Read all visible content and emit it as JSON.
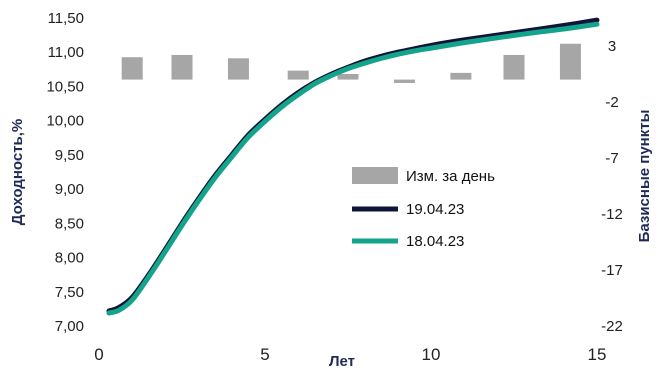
{
  "chart_data": {
    "type": "line",
    "title": "",
    "xlabel": "Лет",
    "ylabel_left": "Доходность,%",
    "ylabel_right": "Базисные пункты",
    "x_range": [
      0,
      15
    ],
    "x_ticks": [
      "0",
      "5",
      "10",
      "15"
    ],
    "y_left_range": [
      7.0,
      11.5
    ],
    "y_left_ticks": [
      "7,00",
      "7,50",
      "8,00",
      "8,50",
      "9,00",
      "9,50",
      "10,00",
      "10,50",
      "11,00",
      "11,50"
    ],
    "y_right_range": [
      -22,
      5.5
    ],
    "y_right_ticks": [
      "3",
      "-2",
      "-7",
      "-12",
      "-17",
      "-22"
    ],
    "grid": false,
    "legend_position": "center-right",
    "colors": {
      "bars": "#a6a6a6",
      "line_1": "#0f1538",
      "line_2": "#14a38b"
    },
    "series": [
      {
        "name": "Изм. за день",
        "type": "bar",
        "axis": "right",
        "x": [
          1,
          2.5,
          4.2,
          6,
          7.5,
          9.2,
          10.9,
          12.5,
          14.2
        ],
        "values": [
          2.0,
          2.2,
          1.9,
          0.8,
          0.5,
          -0.3,
          0.6,
          2.2,
          3.2
        ]
      },
      {
        "name": "19.04.23",
        "type": "line",
        "axis": "left",
        "x": [
          0.3,
          0.6,
          1,
          1.5,
          2,
          2.5,
          3,
          3.5,
          4,
          4.5,
          5,
          5.5,
          6,
          6.5,
          7,
          7.5,
          8,
          8.5,
          9,
          9.5,
          10,
          11,
          12,
          13,
          14,
          15
        ],
        "values": [
          7.22,
          7.27,
          7.42,
          7.75,
          8.12,
          8.5,
          8.86,
          9.2,
          9.5,
          9.79,
          10.02,
          10.23,
          10.41,
          10.56,
          10.68,
          10.78,
          10.87,
          10.94,
          11.0,
          11.05,
          11.1,
          11.18,
          11.25,
          11.32,
          11.39,
          11.47
        ]
      },
      {
        "name": "18.04.23",
        "type": "line",
        "axis": "left",
        "x": [
          0.3,
          0.6,
          1,
          1.5,
          2,
          2.5,
          3,
          3.5,
          4,
          4.5,
          5,
          5.5,
          6,
          6.5,
          7,
          7.5,
          8,
          8.5,
          9,
          9.5,
          10,
          11,
          12,
          13,
          14,
          15
        ],
        "values": [
          7.19,
          7.23,
          7.38,
          7.72,
          8.09,
          8.47,
          8.83,
          9.17,
          9.47,
          9.76,
          9.99,
          10.2,
          10.38,
          10.54,
          10.66,
          10.76,
          10.84,
          10.91,
          10.97,
          11.02,
          11.06,
          11.14,
          11.21,
          11.28,
          11.34,
          11.41
        ]
      }
    ]
  }
}
